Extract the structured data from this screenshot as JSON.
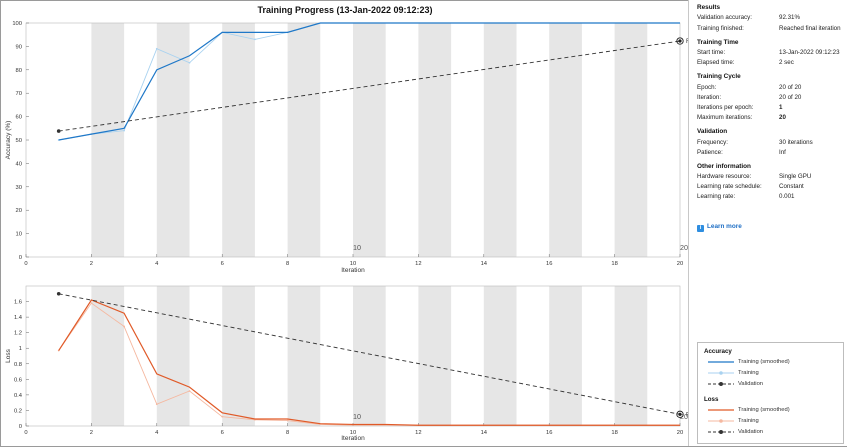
{
  "window": {
    "title": "Training Progress (13-Jan-2022 09:12:23)"
  },
  "colors": {
    "accuracy": "#1f78c8",
    "accuracy_raw": "#a9d2f0",
    "loss": "#e05a28",
    "loss_raw": "#f5b8a0",
    "validation": "#333333",
    "band": "#e6e6e6"
  },
  "chart_data": [
    {
      "type": "line",
      "name": "accuracy",
      "ylabel": "Accuracy (%)",
      "xlabel": "Iteration",
      "xlim": [
        0,
        20
      ],
      "ylim": [
        0,
        100
      ],
      "xticks": [
        "0",
        "2",
        "4",
        "6",
        "8",
        "10",
        "12",
        "14",
        "16",
        "18",
        "20"
      ],
      "yticks": [
        "0",
        "10",
        "20",
        "30",
        "40",
        "50",
        "60",
        "70",
        "80",
        "90",
        "100"
      ],
      "epoch_labels": [
        {
          "x": 10,
          "label": "10"
        },
        {
          "x": 20,
          "label": "20"
        }
      ],
      "series": [
        {
          "name": "Training (smoothed)",
          "x": [
            1,
            2,
            3,
            4,
            5,
            6,
            7,
            8,
            9,
            10,
            11,
            12,
            13,
            14,
            15,
            16,
            17,
            18,
            19,
            20
          ],
          "y": [
            50,
            52.5,
            55,
            80,
            86,
            96,
            96,
            96,
            100,
            100,
            100,
            100,
            100,
            100,
            100,
            100,
            100,
            100,
            100,
            100
          ]
        },
        {
          "name": "Training",
          "x": [
            1,
            2,
            3,
            4,
            5,
            6,
            7,
            8,
            9,
            10,
            11,
            12,
            13,
            14,
            15,
            16,
            17,
            18,
            19,
            20
          ],
          "y": [
            50,
            52.5,
            54,
            89,
            83,
            96,
            93,
            96,
            100,
            100,
            100,
            100,
            100,
            100,
            100,
            100,
            100,
            100,
            100,
            100
          ]
        },
        {
          "name": "Validation",
          "x": [
            1,
            20
          ],
          "y": [
            53.8,
            92.3
          ]
        }
      ],
      "final_label": "Final"
    },
    {
      "type": "line",
      "name": "loss",
      "ylabel": "Loss",
      "xlabel": "Iteration",
      "xlim": [
        0,
        20
      ],
      "ylim": [
        0,
        1.8
      ],
      "xticks": [
        "0",
        "2",
        "4",
        "6",
        "8",
        "10",
        "12",
        "14",
        "16",
        "18",
        "20"
      ],
      "yticks": [
        "0",
        "0.2",
        "0.4",
        "0.6",
        "0.8",
        "1",
        "1.2",
        "1.4",
        "1.6"
      ],
      "epoch_labels": [
        {
          "x": 10,
          "label": "10"
        },
        {
          "x": 20,
          "label": "20"
        }
      ],
      "series": [
        {
          "name": "Training (smoothed)",
          "x": [
            1,
            2,
            3,
            4,
            5,
            6,
            7,
            8,
            9,
            10,
            11,
            12,
            13,
            14,
            15,
            16,
            17,
            18,
            19,
            20
          ],
          "y": [
            0.97,
            1.62,
            1.45,
            0.67,
            0.5,
            0.17,
            0.09,
            0.09,
            0.03,
            0.02,
            0.02,
            0.01,
            0.01,
            0.01,
            0.01,
            0.01,
            0.01,
            0.01,
            0.01,
            0.01
          ]
        },
        {
          "name": "Training",
          "x": [
            1,
            2,
            3,
            4,
            5,
            6,
            7,
            8,
            9,
            10,
            11,
            12,
            13,
            14,
            15,
            16,
            17,
            18,
            19,
            20
          ],
          "y": [
            0.97,
            1.58,
            1.28,
            0.28,
            0.45,
            0.12,
            0.08,
            0.07,
            0.02,
            0.01,
            0.01,
            0.01,
            0.01,
            0.01,
            0.01,
            0.01,
            0.01,
            0.01,
            0.01,
            0.01
          ]
        },
        {
          "name": "Validation",
          "x": [
            1,
            20
          ],
          "y": [
            1.7,
            0.15
          ]
        }
      ],
      "final_label": "Final"
    }
  ],
  "results": {
    "title": "Results",
    "rows": [
      {
        "k": "Validation accuracy:",
        "v": "92.31%"
      },
      {
        "k": "Training finished:",
        "v": "Reached final iteration"
      }
    ]
  },
  "training_time": {
    "title": "Training Time",
    "rows": [
      {
        "k": "Start time:",
        "v": "13-Jan-2022 09:12:23"
      },
      {
        "k": "Elapsed time:",
        "v": "2 sec"
      }
    ]
  },
  "training_cycle": {
    "title": "Training Cycle",
    "rows": [
      {
        "k": "Epoch:",
        "v": "20 of 20"
      },
      {
        "k": "Iteration:",
        "v": "20 of 20"
      },
      {
        "k": "Iterations per epoch:",
        "v": "1"
      },
      {
        "k": "Maximum iterations:",
        "v": "20"
      }
    ]
  },
  "validation": {
    "title": "Validation",
    "rows": [
      {
        "k": "Frequency:",
        "v": "30 iterations"
      },
      {
        "k": "Patience:",
        "v": "Inf"
      }
    ]
  },
  "other_info": {
    "title": "Other information",
    "rows": [
      {
        "k": "Hardware resource:",
        "v": "Single GPU"
      },
      {
        "k": "Learning rate schedule:",
        "v": "Constant"
      },
      {
        "k": "Learning rate:",
        "v": "0.001"
      }
    ]
  },
  "learn_more": {
    "label": "Learn more",
    "icon": "info-icon"
  },
  "legend": {
    "accuracy_title": "Accuracy",
    "loss_title": "Loss",
    "smoothed": "Training (smoothed)",
    "training": "Training",
    "validation": "Validation"
  }
}
